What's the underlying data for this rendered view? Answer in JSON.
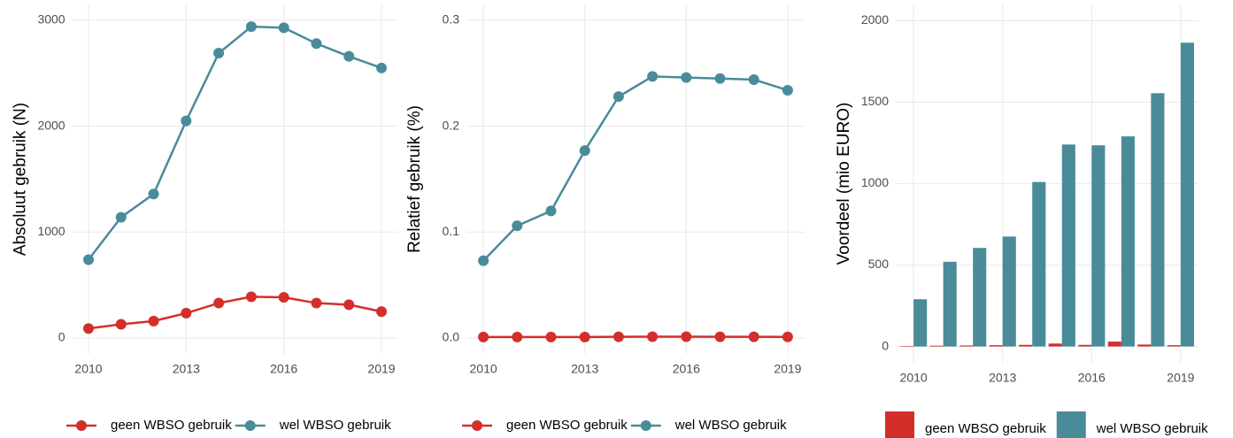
{
  "chart_data": [
    {
      "type": "line",
      "ylabel": "Absoluut gebruik (N)",
      "x": [
        2010,
        2011,
        2012,
        2013,
        2014,
        2015,
        2016,
        2017,
        2018,
        2019
      ],
      "xlim": [
        2009.5,
        2019.5
      ],
      "xticks": [
        2010,
        2013,
        2016,
        2019
      ],
      "ylim": [
        -150,
        3150
      ],
      "yticks": [
        0,
        1000,
        2000,
        3000
      ],
      "grid": true,
      "series": [
        {
          "name": "geen WBSO gebruik",
          "color": "#d32f2a",
          "values": [
            90,
            130,
            160,
            235,
            330,
            390,
            385,
            330,
            315,
            250
          ]
        },
        {
          "name": "wel WBSO gebruik",
          "color": "#4a8b99",
          "values": [
            740,
            1140,
            1360,
            2050,
            2690,
            2940,
            2930,
            2780,
            2660,
            2550
          ]
        }
      ]
    },
    {
      "type": "line",
      "ylabel": "Relatief gebruik (%)",
      "x": [
        2010,
        2011,
        2012,
        2013,
        2014,
        2015,
        2016,
        2017,
        2018,
        2019
      ],
      "xlim": [
        2009.5,
        2019.5
      ],
      "xticks": [
        2010,
        2013,
        2016,
        2019
      ],
      "ylim": [
        -0.015,
        0.315
      ],
      "yticks": [
        {
          "value": 0,
          "label": "0.0"
        },
        0.1,
        0.2,
        0.3
      ],
      "grid": true,
      "series": [
        {
          "name": "geen WBSO gebruik",
          "color": "#d32f2a",
          "values": [
            0.001,
            0.001,
            0.001,
            0.001,
            0.0012,
            0.0013,
            0.0013,
            0.0012,
            0.0012,
            0.0011
          ]
        },
        {
          "name": "wel WBSO gebruik",
          "color": "#4a8b99",
          "values": [
            0.073,
            0.106,
            0.12,
            0.177,
            0.228,
            0.247,
            0.246,
            0.245,
            0.244,
            0.234
          ]
        }
      ]
    },
    {
      "type": "bar",
      "ylabel": "Voordeel (mio EURO)",
      "x": [
        2010,
        2011,
        2012,
        2013,
        2014,
        2015,
        2016,
        2017,
        2018,
        2019
      ],
      "xlim": [
        2009.4,
        2019.6
      ],
      "xticks": [
        2010,
        2013,
        2016,
        2019
      ],
      "ylim": [
        -100,
        2100
      ],
      "yticks": [
        0,
        500,
        1000,
        1500,
        2000
      ],
      "grid": true,
      "series": [
        {
          "name": "geen WBSO gebruik",
          "color": "#d32f2a",
          "values": [
            3,
            5,
            6,
            8,
            10,
            18,
            10,
            30,
            12,
            8
          ]
        },
        {
          "name": "wel WBSO gebruik",
          "color": "#4a8b99",
          "values": [
            290,
            520,
            605,
            675,
            1010,
            1240,
            1235,
            1290,
            1555,
            1865
          ]
        }
      ]
    }
  ]
}
